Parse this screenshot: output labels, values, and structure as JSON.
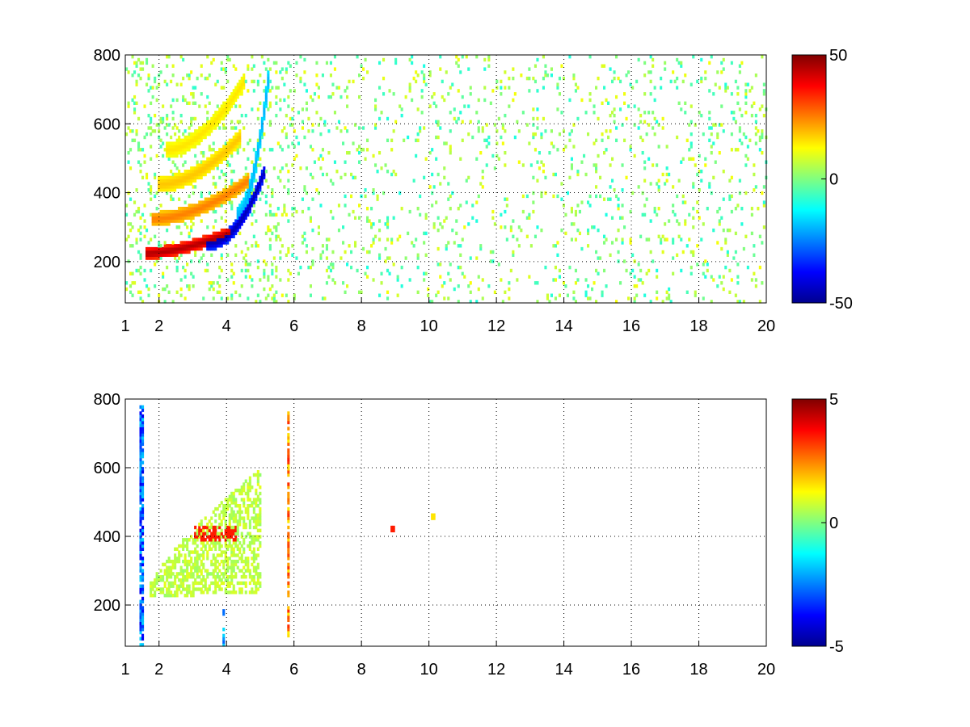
{
  "chart_data": [
    {
      "type": "heatmap",
      "title": "",
      "xlabel": "",
      "ylabel": "",
      "xlim": [
        1,
        20
      ],
      "ylim": [
        80,
        800
      ],
      "xticks": [
        1,
        2,
        4,
        6,
        8,
        10,
        12,
        14,
        16,
        18,
        20
      ],
      "yticks": [
        200,
        400,
        600,
        800
      ],
      "grid": true,
      "colormap": "jet",
      "clim": [
        -50,
        50
      ],
      "colorbar_ticks": [
        50,
        0,
        -50
      ],
      "features": [
        {
          "kind": "ridge",
          "value": 45,
          "x0": 1.6,
          "x1": 4.1,
          "y0": 220,
          "y1": 280,
          "curv": 1.6,
          "sigma": 12
        },
        {
          "kind": "ridge",
          "value": -45,
          "x0": 3.4,
          "x1": 5.1,
          "y0": 250,
          "y1": 460,
          "curv": 2.2,
          "sigma": 14
        },
        {
          "kind": "ridge",
          "value": 25,
          "x0": 1.8,
          "x1": 4.6,
          "y0": 320,
          "y1": 430,
          "curv": 1.8,
          "sigma": 14
        },
        {
          "kind": "ridge",
          "value": 18,
          "x0": 2.0,
          "x1": 4.4,
          "y0": 420,
          "y1": 560,
          "curv": 1.8,
          "sigma": 16
        },
        {
          "kind": "ridge",
          "value": 15,
          "x0": 2.2,
          "x1": 4.5,
          "y0": 520,
          "y1": 720,
          "curv": 1.8,
          "sigma": 16
        },
        {
          "kind": "ridge",
          "value": -20,
          "x0": 4.3,
          "x1": 5.2,
          "y0": 330,
          "y1": 720,
          "curv": 1.8,
          "sigma": 20
        },
        {
          "kind": "noise",
          "value_range": [
            -10,
            12
          ],
          "x0": 6,
          "x1": 20,
          "density": 0.07
        }
      ]
    },
    {
      "type": "heatmap",
      "title": "",
      "xlabel": "",
      "ylabel": "",
      "xlim": [
        1,
        20
      ],
      "ylim": [
        80,
        800
      ],
      "xticks": [
        1,
        2,
        4,
        6,
        8,
        10,
        12,
        14,
        16,
        18,
        20
      ],
      "yticks": [
        200,
        400,
        600,
        800
      ],
      "grid": true,
      "colormap": "jet",
      "clim": [
        -5,
        5
      ],
      "colorbar_ticks": [
        5,
        0,
        -5
      ],
      "features": [
        {
          "kind": "band",
          "value": 0.6,
          "x0": 1.7,
          "x1": 5.0,
          "y0": 220,
          "y1": 700
        },
        {
          "kind": "patch",
          "value": 3.5,
          "x0": 3.0,
          "x1": 4.3,
          "y0": 385,
          "y1": 425
        },
        {
          "kind": "line",
          "value": 3.5,
          "x": 5.8,
          "y0": 100,
          "y1": 780
        },
        {
          "kind": "line",
          "value": -4,
          "x": 1.45,
          "y0": 80,
          "y1": 780
        },
        {
          "kind": "line",
          "value": -3,
          "x": 3.9,
          "y0": 80,
          "y1": 180
        },
        {
          "kind": "dot",
          "value": 3.5,
          "x": 8.9,
          "y": 420
        },
        {
          "kind": "dot",
          "value": 1.5,
          "x": 10.1,
          "y": 455
        }
      ]
    }
  ]
}
